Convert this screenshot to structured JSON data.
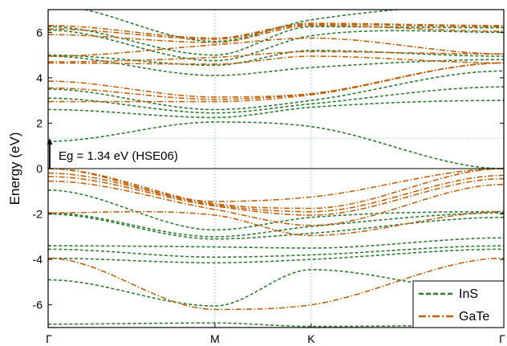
{
  "chart_data": {
    "type": "line",
    "ylabel": "Energy (eV)",
    "ylim": [
      -7,
      7
    ],
    "yticks": [
      -6,
      -4,
      -2,
      0,
      2,
      4,
      6
    ],
    "kpoints": [
      "Γ",
      "M",
      "K",
      "Γ"
    ],
    "kpoint_positions": [
      0,
      1,
      1.577,
      2.732
    ],
    "annotation": "Eg = 1.34 eV (HSE06)",
    "gap": {
      "vbm": 0,
      "cbm": 1.34
    },
    "legend": {
      "position": "bottom-right"
    },
    "colors": {
      "InS": "#2e7d32",
      "GaTe": "#c0620c",
      "guide": "#8fc9c9"
    },
    "series": [
      {
        "name": "InS",
        "style": "dashed",
        "bands": [
          [
            1.2,
            2.05,
            1.85,
            0.0
          ],
          [
            2.6,
            2.25,
            2.7,
            3.0
          ],
          [
            3.1,
            2.45,
            2.85,
            3.6
          ],
          [
            3.5,
            2.6,
            3.0,
            4.3
          ],
          [
            4.95,
            4.1,
            4.45,
            4.8
          ],
          [
            5.0,
            4.55,
            5.2,
            4.95
          ],
          [
            6.1,
            4.75,
            5.85,
            6.0
          ],
          [
            6.25,
            5.0,
            6.25,
            6.2
          ],
          [
            7.2,
            5.6,
            6.55,
            7.2
          ],
          [
            -0.95,
            -2.7,
            -2.15,
            -1.9
          ],
          [
            -1.95,
            -3.0,
            -2.55,
            -1.95
          ],
          [
            -2.0,
            -3.1,
            -2.85,
            -2.15
          ],
          [
            -3.4,
            -3.45,
            -3.5,
            -3.05
          ],
          [
            -3.55,
            -3.9,
            -3.8,
            -3.4
          ],
          [
            -3.95,
            -4.15,
            -4.0,
            -3.55
          ],
          [
            -4.9,
            -6.05,
            -4.45,
            -5.5
          ],
          [
            -6.85,
            -6.8,
            -6.95,
            -6.9
          ]
        ]
      },
      {
        "name": "GaTe",
        "style": "dashdot",
        "bands": [
          [
            2.95,
            2.95,
            3.25,
            4.65
          ],
          [
            3.55,
            3.05,
            3.3,
            4.65
          ],
          [
            3.85,
            3.15,
            3.3,
            4.65
          ],
          [
            4.65,
            4.6,
            4.95,
            4.65
          ],
          [
            4.7,
            4.9,
            5.15,
            5.05
          ],
          [
            4.95,
            5.45,
            5.75,
            5.05
          ],
          [
            5.9,
            5.55,
            6.3,
            6.05
          ],
          [
            6.15,
            5.7,
            6.35,
            6.25
          ],
          [
            6.3,
            5.75,
            6.4,
            6.3
          ],
          [
            0.0,
            -1.45,
            -1.25,
            0.0
          ],
          [
            0.0,
            -1.55,
            -1.75,
            0.0
          ],
          [
            -0.2,
            -1.6,
            -1.9,
            -0.3
          ],
          [
            -0.35,
            -1.65,
            -2.05,
            -0.45
          ],
          [
            -0.55,
            -1.8,
            -2.5,
            -0.7
          ],
          [
            -1.95,
            -2.05,
            -2.95,
            -1.9
          ],
          [
            -3.95,
            -6.2,
            -6.0,
            -3.95
          ]
        ]
      }
    ]
  }
}
